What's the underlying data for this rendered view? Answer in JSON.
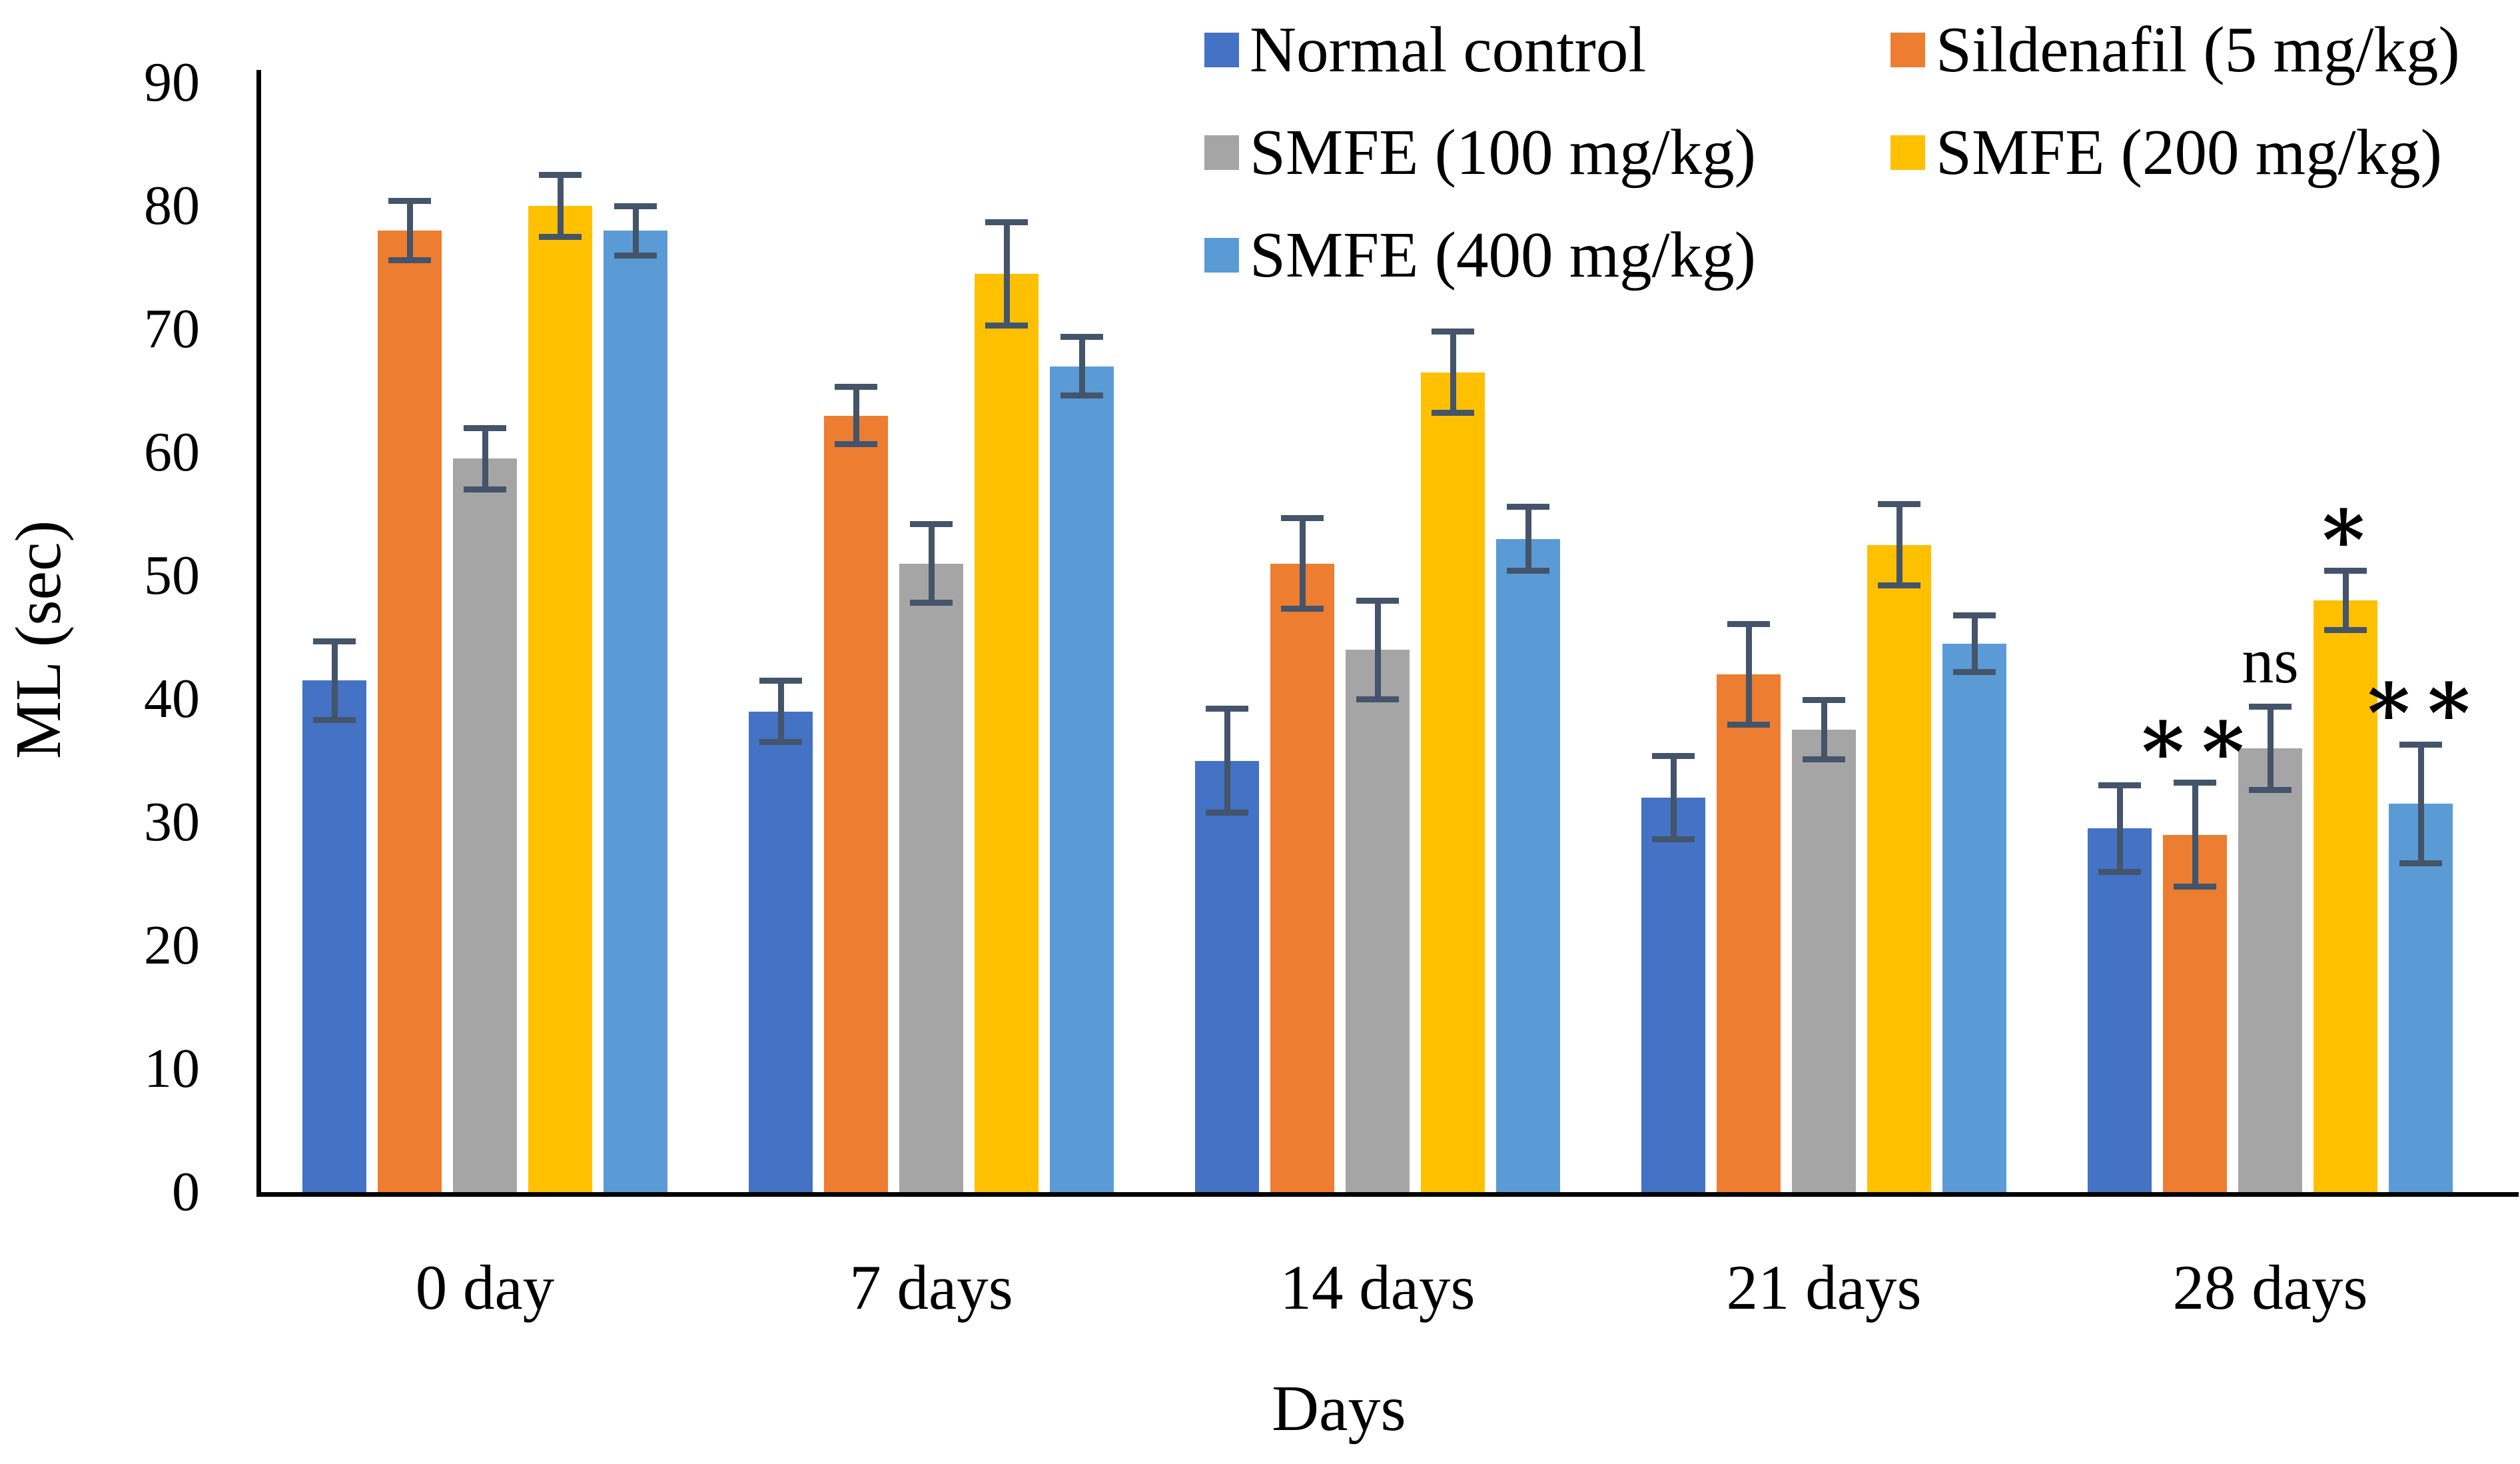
{
  "chart_data": {
    "type": "bar",
    "title": "",
    "xlabel": "Days",
    "ylabel": "ML (sec)",
    "categories": [
      "0 day",
      "7 days",
      "14 days",
      "21 days",
      "28 days"
    ],
    "yticks": [
      0,
      10,
      20,
      30,
      40,
      50,
      60,
      70,
      80,
      90
    ],
    "ylim": [
      0,
      90
    ],
    "grid": false,
    "legend_position": "top-right",
    "background_color": "#ffffff",
    "axis_color": "#000000",
    "error_bar_color": "#44546A",
    "series": [
      {
        "name": "Normal control",
        "color": "#4472C4",
        "pattern": "solid",
        "values": [
          41.5,
          39,
          35,
          32,
          29.5
        ],
        "errors": [
          3.2,
          2.5,
          4.2,
          3.4,
          3.5
        ]
      },
      {
        "name": "Sildenafil (5 mg/kg)",
        "color": "#ED7D31",
        "pattern": "solid",
        "values": [
          78,
          63,
          51,
          42,
          29
        ],
        "errors": [
          2.4,
          2.3,
          3.7,
          4.1,
          4.2
        ]
      },
      {
        "name": "SMFE (100 mg/kg)",
        "color": "#A5A5A5",
        "pattern": "herringbone",
        "values": [
          59.5,
          51,
          44,
          37.5,
          36
        ],
        "errors": [
          2.5,
          3.2,
          4.0,
          2.4,
          3.4
        ]
      },
      {
        "name": "SMFE (200 mg/kg)",
        "color": "#FFC000",
        "pattern": "solid",
        "values": [
          80,
          74.5,
          66.5,
          52.5,
          48
        ],
        "errors": [
          2.5,
          4.2,
          3.3,
          3.3,
          2.4
        ]
      },
      {
        "name": "SMFE (400 mg/kg)",
        "color": "#5B9BD5",
        "pattern": "dots",
        "values": [
          78,
          67,
          53,
          44.5,
          31.5
        ],
        "errors": [
          2.0,
          2.4,
          2.6,
          2.3,
          4.8
        ]
      }
    ],
    "annotations": [
      {
        "category": "28 days",
        "series": "Sildenafil (5 mg/kg)",
        "text": "**"
      },
      {
        "category": "28 days",
        "series": "SMFE (100 mg/kg)",
        "text": "ns"
      },
      {
        "category": "28 days",
        "series": "SMFE (200 mg/kg)",
        "text": "*"
      },
      {
        "category": "28 days",
        "series": "SMFE (400 mg/kg)",
        "text": "**"
      }
    ],
    "legend_order": [
      "Normal control",
      "Sildenafil (5 mg/kg)",
      "SMFE (100 mg/kg)",
      "SMFE (200 mg/kg)",
      "SMFE (400 mg/kg)"
    ]
  }
}
